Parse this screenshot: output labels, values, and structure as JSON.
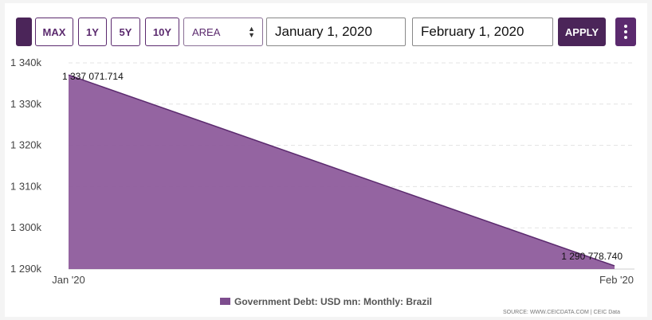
{
  "toolbar": {
    "range_buttons": [
      "MAX",
      "1Y",
      "5Y",
      "10Y"
    ],
    "chart_type": "AREA",
    "start_date": "January 1, 2020",
    "end_date": "February 1, 2020",
    "apply_label": "APPLY",
    "menu_icon": "vertical-dots-icon"
  },
  "colors": {
    "accent": "#5b2a6e",
    "area_fill": "#8e5c9c",
    "area_line": "#5b2a6e"
  },
  "chart_data": {
    "type": "area",
    "x": [
      "Jan '20",
      "Feb '20"
    ],
    "series": [
      {
        "name": "Government Debt: USD mn: Monthly: Brazil",
        "values": [
          1337071.714,
          1290778.74
        ]
      }
    ],
    "point_labels": [
      "1 337 071.714",
      "1 290 778.740"
    ],
    "y_ticks": [
      "1 290k",
      "1 300k",
      "1 310k",
      "1 320k",
      "1 330k",
      "1 340k"
    ],
    "ylim": [
      1290000,
      1340000
    ],
    "grid": true,
    "legend_position": "bottom"
  },
  "footer": {
    "source": "SOURCE: WWW.CEICDATA.COM | CEIC Data"
  }
}
